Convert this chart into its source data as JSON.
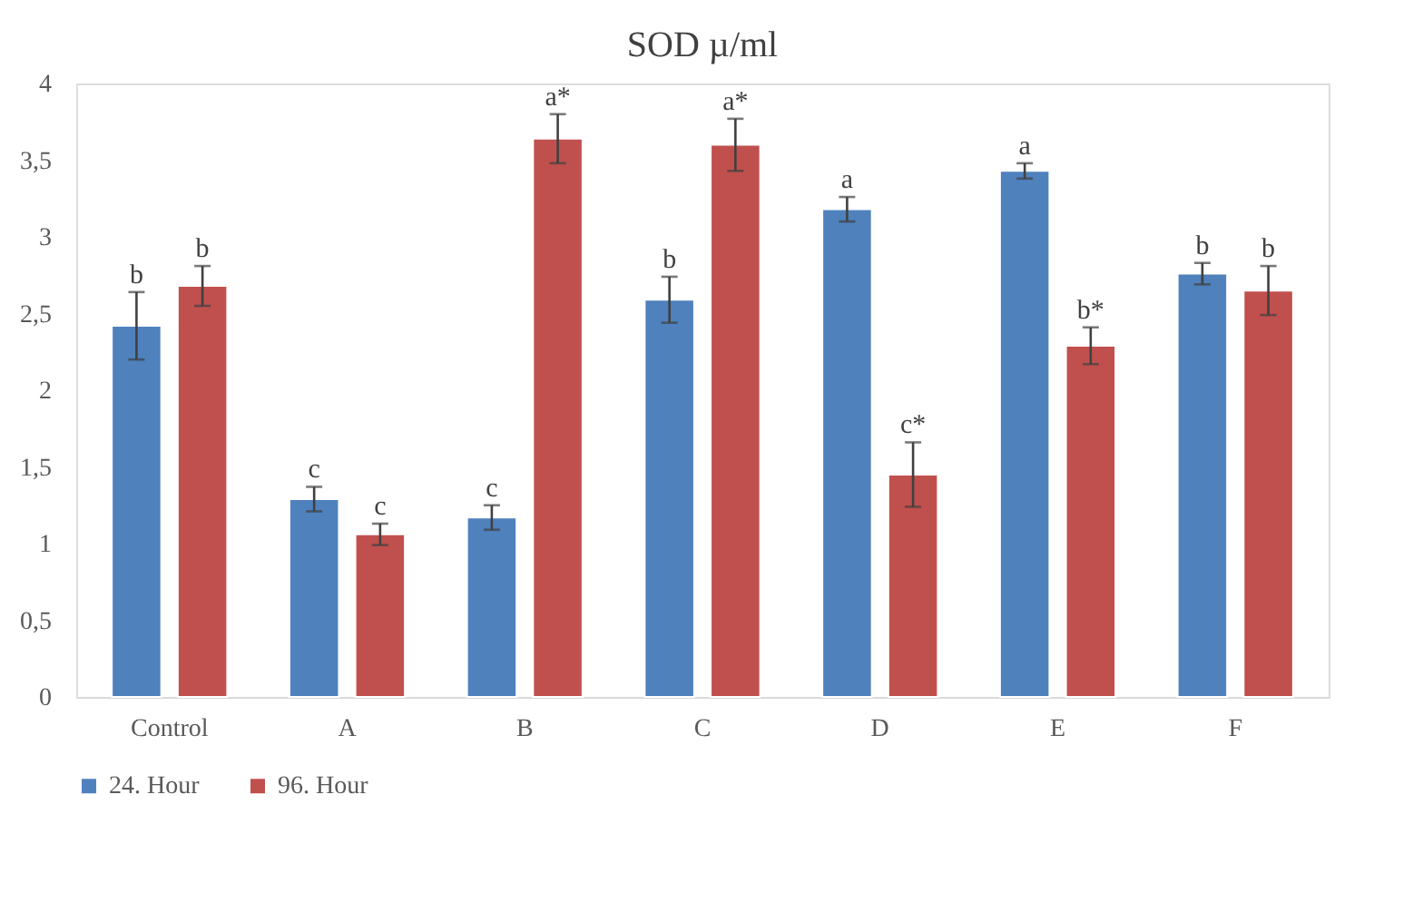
{
  "chart_data": {
    "type": "bar",
    "title": "SOD µ/ml",
    "categories": [
      "Control",
      "A",
      "B",
      "C",
      "D",
      "E",
      "F"
    ],
    "series": [
      {
        "name": "24. Hour",
        "color": "#4f81bd",
        "values": [
          2.42,
          1.29,
          1.17,
          2.59,
          3.18,
          3.43,
          2.76
        ],
        "errors": [
          0.22,
          0.08,
          0.08,
          0.15,
          0.08,
          0.05,
          0.07
        ],
        "value_labels": [
          "b",
          "c",
          "c",
          "b",
          "a",
          "a",
          "b"
        ]
      },
      {
        "name": "96. Hour",
        "color": "#c0504d",
        "values": [
          2.68,
          1.06,
          3.64,
          3.6,
          1.45,
          2.29,
          2.65
        ],
        "errors": [
          0.13,
          0.07,
          0.16,
          0.17,
          0.21,
          0.12,
          0.16
        ],
        "value_labels": [
          "b",
          "c",
          "a*",
          "a*",
          "c*",
          "b*",
          "b"
        ]
      }
    ],
    "ylim": [
      0,
      4
    ],
    "yticks": [
      0,
      {
        "value": 0.5,
        "label": "0,5"
      },
      1,
      {
        "value": 1.5,
        "label": "1,5"
      },
      2,
      {
        "value": 2.5,
        "label": "2,5"
      },
      3,
      {
        "value": 3.5,
        "label": "3,5"
      },
      4
    ],
    "grid": false,
    "legend": "bottom"
  }
}
